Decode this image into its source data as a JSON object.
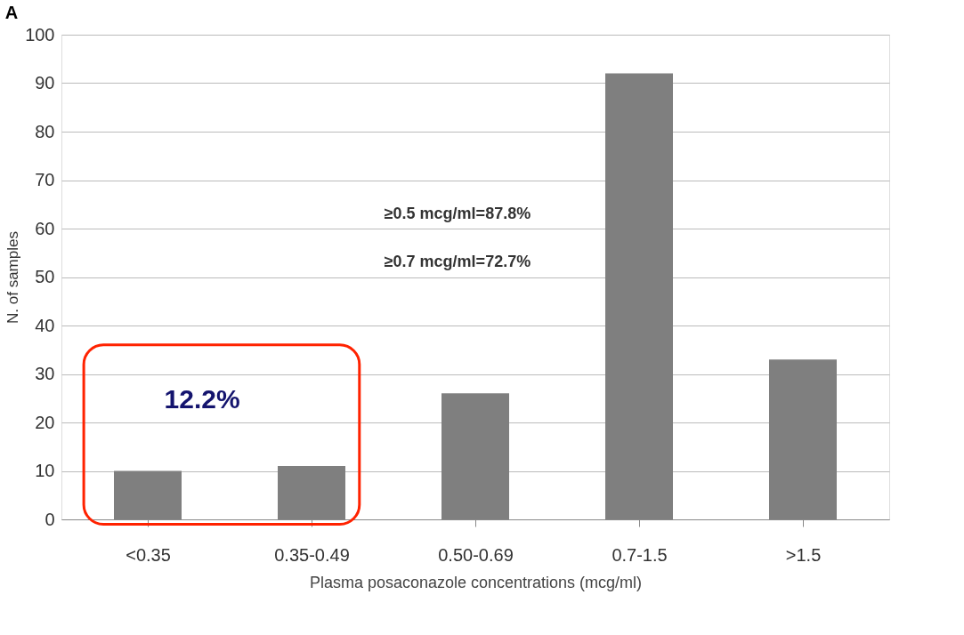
{
  "chart_data": {
    "type": "bar",
    "title": "A",
    "xlabel": "Plasma posaconazole concentrations (mcg/ml)",
    "ylabel": "N. of samples",
    "categories": [
      "<0.35",
      "0.35-0.49",
      "0.50-0.69",
      "0.7-1.5",
      ">1.5"
    ],
    "values": [
      10,
      11,
      26,
      92,
      33
    ],
    "color": "#7f7f7f",
    "ylim": [
      0,
      100
    ],
    "yticks": [
      0,
      10,
      20,
      30,
      40,
      50,
      60,
      70,
      80,
      90,
      100
    ],
    "grid": "y",
    "annotations": [
      "12.2%",
      "≥0.5 mcg/ml=87.8%",
      "≥0.7 mcg/ml=72.7%"
    ]
  }
}
